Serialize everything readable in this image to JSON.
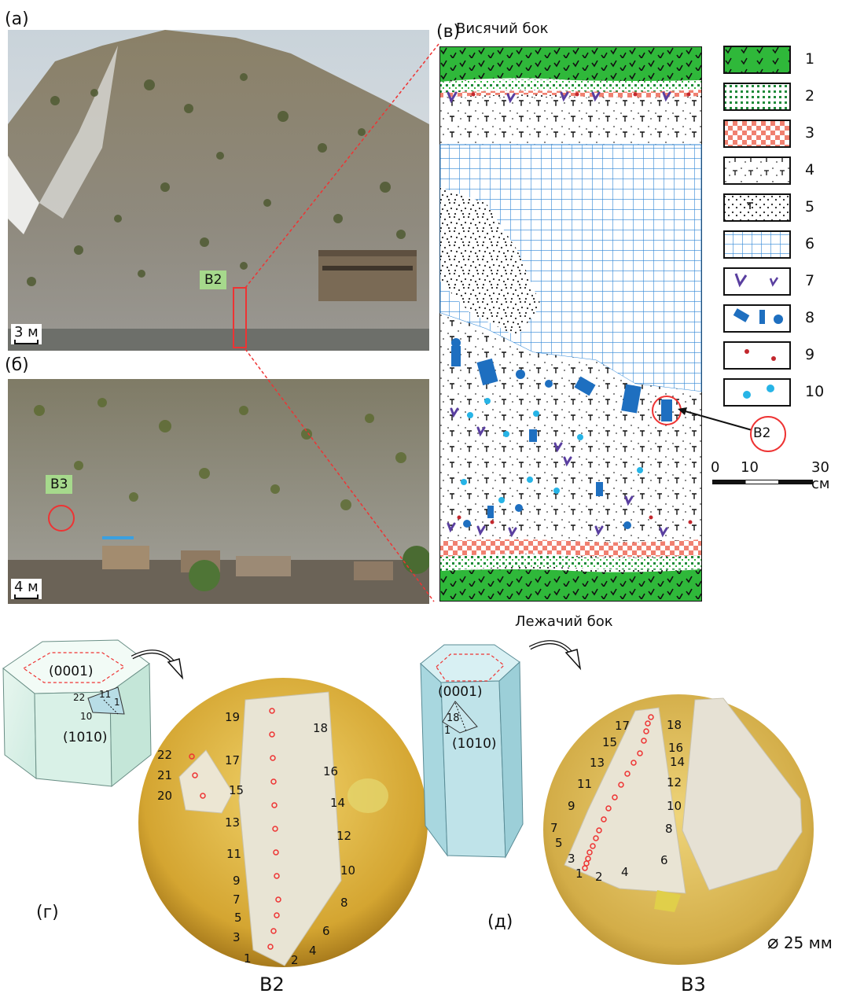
{
  "panels": {
    "a": "(а)",
    "b": "(б)",
    "v": "(в)",
    "g": "(г)",
    "d": "(д)"
  },
  "photo_a": {
    "scale": "3 м",
    "tag": "B2"
  },
  "photo_b": {
    "scale": "4 м",
    "tag": "B3"
  },
  "section": {
    "top_title": "Висячий бок",
    "bottom_title": "Лежачий бок",
    "b2_marker": "B2",
    "scale_labels": [
      "0",
      "10",
      "30 см"
    ]
  },
  "legend": [
    "1",
    "2",
    "3",
    "4",
    "5",
    "6",
    "7",
    "8",
    "9",
    "10"
  ],
  "crystal_g": {
    "face_top": "(0001)",
    "face_side": "(1010)",
    "numbers": [
      "22",
      "11",
      "1",
      "10"
    ]
  },
  "crystal_d": {
    "face_top": "(0001)",
    "face_side": "(1010)",
    "numbers": [
      "18",
      "1"
    ]
  },
  "sample_b2": {
    "title": "B2",
    "left_points": [
      "19",
      "17",
      "15",
      "13",
      "11",
      "9",
      "7",
      "5",
      "3",
      "1"
    ],
    "right_points": [
      "18",
      "16",
      "14",
      "12",
      "10",
      "8",
      "6",
      "4",
      "2"
    ],
    "fragment_points": [
      "22",
      "21",
      "20"
    ]
  },
  "sample_b3": {
    "title": "B3",
    "left_points": [
      "17",
      "15",
      "13",
      "11",
      "9",
      "7",
      "5",
      "3",
      "1"
    ],
    "right_points": [
      "18",
      "16",
      "14",
      "12",
      "10",
      "8",
      "6",
      "4",
      "2"
    ],
    "diameter": "25 мм"
  },
  "colors": {
    "green": "#2fb83a",
    "red_check": "#f08070",
    "blue_grid": "#2e86d6",
    "blue_block": "#1e6fc0",
    "purple": "#5a3fa0",
    "cyan_star": "#27b4e6",
    "amber": "#d9b23a"
  }
}
